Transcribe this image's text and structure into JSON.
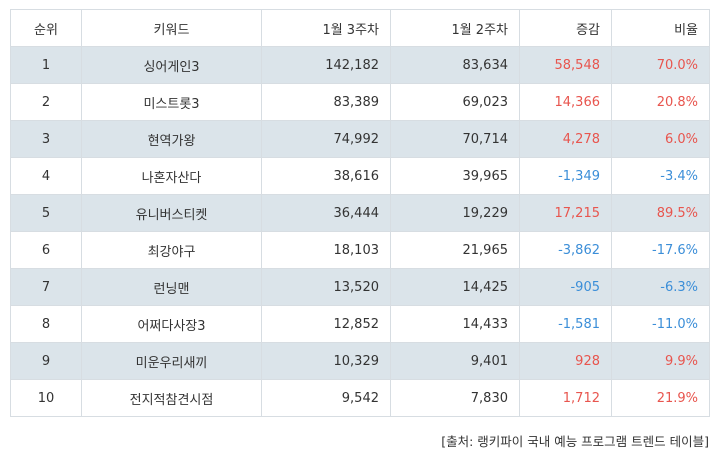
{
  "headers": {
    "rank": "순위",
    "keyword": "키워드",
    "week3": "1월 3주차",
    "week2": "1월 2주차",
    "change": "증감",
    "ratio": "비율"
  },
  "rows": [
    {
      "rank": "1",
      "keyword": "싱어게인3",
      "week3": "142,182",
      "week2": "83,634",
      "change": "58,548",
      "ratio": "70.0%",
      "dir": "pos"
    },
    {
      "rank": "2",
      "keyword": "미스트롯3",
      "week3": "83,389",
      "week2": "69,023",
      "change": "14,366",
      "ratio": "20.8%",
      "dir": "pos"
    },
    {
      "rank": "3",
      "keyword": "현역가왕",
      "week3": "74,992",
      "week2": "70,714",
      "change": "4,278",
      "ratio": "6.0%",
      "dir": "pos"
    },
    {
      "rank": "4",
      "keyword": "나혼자산다",
      "week3": "38,616",
      "week2": "39,965",
      "change": "-1,349",
      "ratio": "-3.4%",
      "dir": "neg"
    },
    {
      "rank": "5",
      "keyword": "유니버스티켓",
      "week3": "36,444",
      "week2": "19,229",
      "change": "17,215",
      "ratio": "89.5%",
      "dir": "pos"
    },
    {
      "rank": "6",
      "keyword": "최강야구",
      "week3": "18,103",
      "week2": "21,965",
      "change": "-3,862",
      "ratio": "-17.6%",
      "dir": "neg"
    },
    {
      "rank": "7",
      "keyword": "런닝맨",
      "week3": "13,520",
      "week2": "14,425",
      "change": "-905",
      "ratio": "-6.3%",
      "dir": "neg"
    },
    {
      "rank": "8",
      "keyword": "어쩌다사장3",
      "week3": "12,852",
      "week2": "14,433",
      "change": "-1,581",
      "ratio": "-11.0%",
      "dir": "neg"
    },
    {
      "rank": "9",
      "keyword": "미운우리새끼",
      "week3": "10,329",
      "week2": "9,401",
      "change": "928",
      "ratio": "9.9%",
      "dir": "pos"
    },
    {
      "rank": "10",
      "keyword": "전지적참견시점",
      "week3": "9,542",
      "week2": "7,830",
      "change": "1,712",
      "ratio": "21.9%",
      "dir": "pos"
    }
  ],
  "source": "[출처: 랭키파이 국내 예능 프로그램 트렌드 테이블]",
  "colors": {
    "positive": "#e8554e",
    "negative": "#3b8ed8",
    "stripe": "#dbe4ea"
  }
}
